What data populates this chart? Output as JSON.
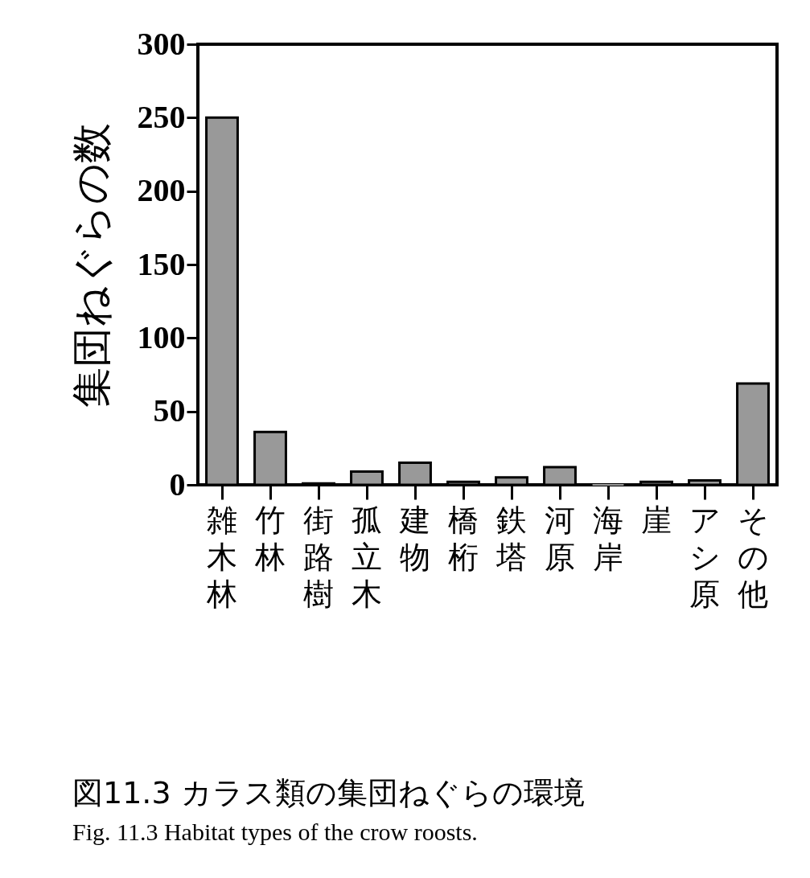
{
  "chart_data": {
    "type": "bar",
    "title": "図11.3 カラス類の集団ねぐらの環境",
    "subtitle": "Fig. 11.3  Habitat types of the crow roosts.",
    "ylabel": "集団ねぐらの数",
    "categories": [
      "雑木林",
      "竹林",
      "街路樹",
      "孤立木",
      "建物",
      "橋桁",
      "鉄塔",
      "河原",
      "海岸",
      "崖",
      "アシ原",
      "その他"
    ],
    "values": [
      250,
      36,
      1,
      9,
      15,
      2,
      5,
      12,
      0,
      2,
      3,
      69
    ],
    "color": "#999999",
    "ylim": [
      0,
      300
    ],
    "yticks": [
      0,
      50,
      100,
      150,
      200,
      250,
      300
    ],
    "grid": false,
    "legend": false
  }
}
